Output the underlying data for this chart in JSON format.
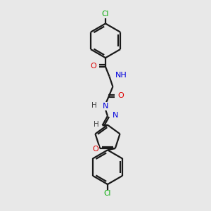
{
  "bg_color": "#e8e8e8",
  "bond_color": "#1a1a1a",
  "atom_colors": {
    "O": "#dd0000",
    "N": "#0000dd",
    "Cl": "#00aa00",
    "H": "#444444",
    "C": "#1a1a1a"
  },
  "figsize": [
    3.0,
    3.0
  ],
  "dpi": 100,
  "lw": 1.6
}
